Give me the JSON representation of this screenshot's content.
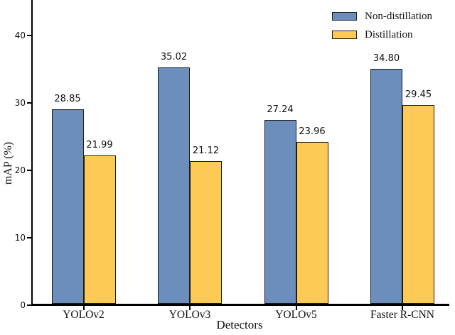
{
  "figure": {
    "background": "#ffffff",
    "axis_color": "#000000"
  },
  "chart_data": {
    "type": "bar",
    "title": "",
    "categories": [
      "YOLOv2",
      "YOLOv3",
      "YOLOv5",
      "Faster R-CNN"
    ],
    "series": [
      {
        "name": "Non-distillation",
        "color": "#6b8ebc",
        "values": [
          28.85,
          35.02,
          27.24,
          34.8
        ],
        "value_labels": [
          "28.85",
          "35.02",
          "27.24",
          "34.80"
        ]
      },
      {
        "name": "Distillation",
        "color": "#fdca55",
        "values": [
          21.99,
          21.12,
          23.96,
          29.45
        ],
        "value_labels": [
          "21.99",
          "21.12",
          "23.96",
          "29.45"
        ]
      }
    ],
    "xlabel": "Detectors",
    "ylabel": "mAP (%)",
    "ytick_labels": [
      "0",
      "10",
      "20",
      "30",
      "40"
    ],
    "ytick_values": [
      0,
      10,
      20,
      30,
      40
    ],
    "ylim": [
      0,
      45.2
    ],
    "grid": false,
    "legend_position": "upper-right",
    "bar_edge_color": "#1a1a1a"
  }
}
